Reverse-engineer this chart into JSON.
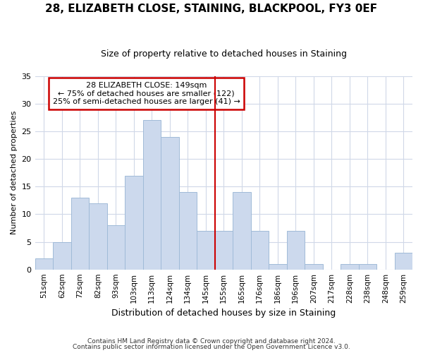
{
  "title1": "28, ELIZABETH CLOSE, STAINING, BLACKPOOL, FY3 0EF",
  "title2": "Size of property relative to detached houses in Staining",
  "xlabel": "Distribution of detached houses by size in Staining",
  "ylabel": "Number of detached properties",
  "footer1": "Contains HM Land Registry data © Crown copyright and database right 2024.",
  "footer2": "Contains public sector information licensed under the Open Government Licence v3.0.",
  "annotation_title": "28 ELIZABETH CLOSE: 149sqm",
  "annotation_line1": "← 75% of detached houses are smaller (122)",
  "annotation_line2": "25% of semi-detached houses are larger (41) →",
  "bar_labels": [
    "51sqm",
    "62sqm",
    "72sqm",
    "82sqm",
    "93sqm",
    "103sqm",
    "113sqm",
    "124sqm",
    "134sqm",
    "145sqm",
    "155sqm",
    "165sqm",
    "176sqm",
    "186sqm",
    "196sqm",
    "207sqm",
    "217sqm",
    "228sqm",
    "238sqm",
    "248sqm",
    "259sqm"
  ],
  "bar_values": [
    2,
    5,
    13,
    12,
    8,
    17,
    27,
    24,
    14,
    7,
    7,
    14,
    7,
    1,
    7,
    1,
    0,
    1,
    1,
    0,
    3
  ],
  "bar_color": "#ccd9ed",
  "bar_edge_color": "#a0bbd8",
  "vline_x": 9.5,
  "vline_color": "#cc0000",
  "bg_color": "#ffffff",
  "grid_color": "#d0d8e8",
  "annotation_box_color": "#cc0000",
  "ylim": [
    0,
    35
  ],
  "yticks": [
    0,
    5,
    10,
    15,
    20,
    25,
    30,
    35
  ],
  "title1_fontsize": 11,
  "title2_fontsize": 9
}
